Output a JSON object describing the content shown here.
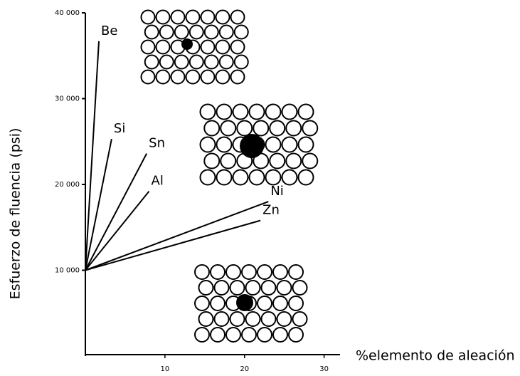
{
  "chart_data": {
    "type": "line",
    "y_label": "Esfuerzo de fluencia (psi)",
    "x_label": "%elemento de aleación",
    "xlim": [
      0,
      32
    ],
    "ylim": [
      0,
      40000
    ],
    "xticks": [
      10,
      20,
      30
    ],
    "yticks": [
      {
        "value": 10000,
        "label": "10 000"
      },
      {
        "value": 20000,
        "label": "20 000"
      },
      {
        "value": 30000,
        "label": "30 000"
      },
      {
        "value": 40000,
        "label": "40 000"
      }
    ],
    "grid": false,
    "series": [
      {
        "name": "Be",
        "color": "#000000",
        "x": [
          0,
          1.7
        ],
        "values": [
          10000,
          36700
        ]
      },
      {
        "name": "Si",
        "color": "#000000",
        "x": [
          0,
          3.3
        ],
        "values": [
          10000,
          25300
        ]
      },
      {
        "name": "Sn",
        "color": "#000000",
        "x": [
          0,
          7.7
        ],
        "values": [
          10000,
          23600
        ]
      },
      {
        "name": "Al",
        "color": "#000000",
        "x": [
          0,
          8.0
        ],
        "values": [
          10000,
          19200
        ]
      },
      {
        "name": "Ni",
        "color": "#000000",
        "x": [
          0,
          23.0
        ],
        "values": [
          10000,
          18000
        ]
      },
      {
        "name": "Zn",
        "color": "#000000",
        "x": [
          0,
          22.0
        ],
        "values": [
          10000,
          15800
        ]
      }
    ]
  }
}
